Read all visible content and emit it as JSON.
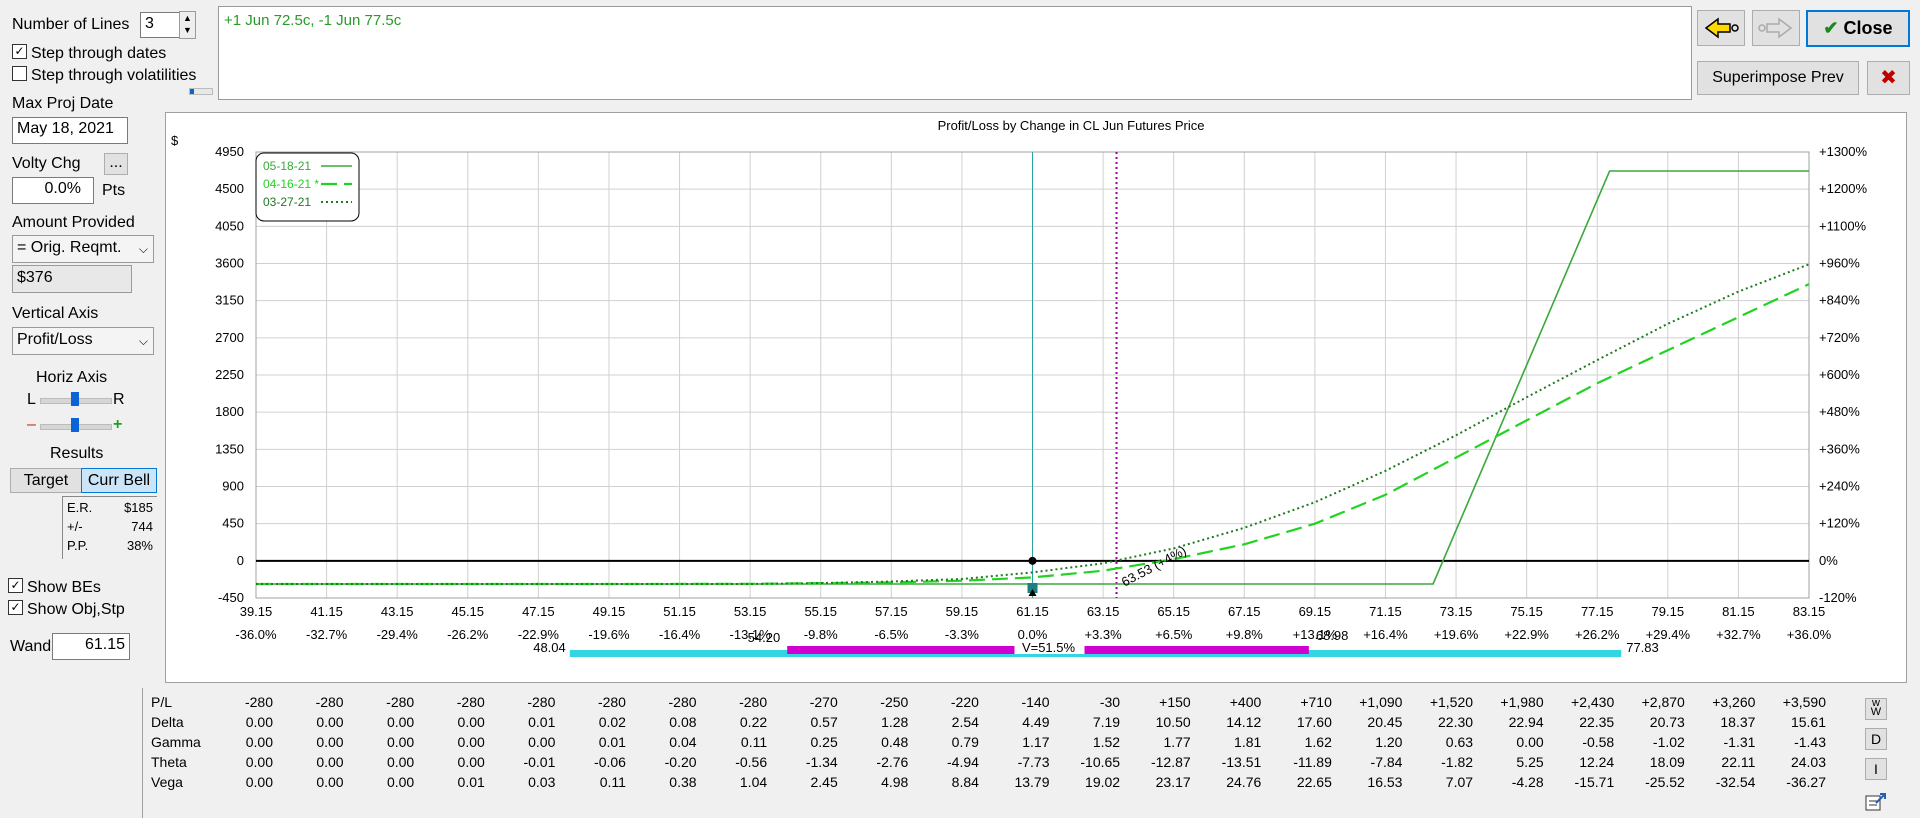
{
  "controls": {
    "number_of_lines_label": "Number of Lines",
    "number_of_lines_value": "3",
    "step_dates_label": "Step through dates",
    "step_vol_label": "Step through volatilities",
    "max_proj_date_label": "Max Proj Date",
    "max_proj_date_value": "May 18, 2021",
    "volty_chg_label": "Volty Chg",
    "volty_chg_button": "...",
    "volty_chg_value": "0.0%",
    "volty_chg_unit": "Pts",
    "amount_provided_label": "Amount Provided",
    "amount_provided_select": "= Orig. Reqmt.",
    "amount_value": "$376",
    "vertical_axis_label": "Vertical Axis",
    "vertical_axis_select": "Profit/Loss",
    "horiz_axis_label": "Horiz Axis",
    "slider_left": "L",
    "slider_right": "R",
    "slider_minus": "–",
    "slider_plus": "+",
    "results_label": "Results",
    "target_tab": "Target",
    "curr_bell_tab": "Curr Bell",
    "er_label": "E.R.",
    "er_value": "$185",
    "pm_label": "+/-",
    "pm_value": "744",
    "pp_label": "P.P.",
    "pp_value": "38%",
    "show_bes_label": "Show BEs",
    "show_obj_label": "Show Obj,Stp",
    "wand_label": "Wand",
    "wand_value": "61.15"
  },
  "position_text": "+1 Jun 72.5c, -1 Jun 77.5c",
  "buttons": {
    "close": "Close",
    "superimpose": "Superimpose Prev",
    "close_x": "✖",
    "w_btn": "w",
    "w_btn2": "W",
    "d_btn": "D",
    "i_btn": "I"
  },
  "colors": {
    "line_green": "#3aa83a",
    "dash_green": "#22d322",
    "dot_green": "#1f7a1f",
    "current_price": "#2ba3a3",
    "marker_purple": "#a000a0",
    "bell_cyan": "#33d6e0",
    "bell_magenta": "#d000d0"
  },
  "chart_data": {
    "type": "line",
    "title": "Profit/Loss by Change in CL Jun Futures Price",
    "ylabel": "$",
    "ylim": [
      -450,
      4950
    ],
    "xlim": [
      39.15,
      83.15
    ],
    "y_ticks": [
      "-450",
      "0",
      "450",
      "900",
      "1350",
      "1800",
      "2250",
      "2700",
      "3150",
      "3600",
      "4050",
      "4500",
      "4950"
    ],
    "y_right_ticks": [
      "-120%",
      "0%",
      "+120%",
      "+240%",
      "+360%",
      "+480%",
      "+600%",
      "+720%",
      "+840%",
      "+960%",
      "+1100%",
      "+1200%",
      "+1300%"
    ],
    "x_ticks": [
      "39.15",
      "41.15",
      "43.15",
      "45.15",
      "47.15",
      "49.15",
      "51.15",
      "53.15",
      "55.15",
      "57.15",
      "59.15",
      "61.15",
      "63.15",
      "65.15",
      "67.15",
      "69.15",
      "71.15",
      "73.15",
      "75.15",
      "77.15",
      "79.15",
      "81.15",
      "83.15"
    ],
    "x_pct_ticks": [
      "-36.0%",
      "-32.7%",
      "-29.4%",
      "-26.2%",
      "-22.9%",
      "-19.6%",
      "-16.4%",
      "-13.1%",
      "-9.8%",
      "-6.5%",
      "-3.3%",
      "0.0%",
      "+3.3%",
      "+6.5%",
      "+9.8%",
      "+13.1%",
      "+16.4%",
      "+19.6%",
      "+22.9%",
      "+26.2%",
      "+29.4%",
      "+32.7%",
      "+36.0%"
    ],
    "legend": [
      {
        "label": "05-18-21",
        "style": "solid"
      },
      {
        "label": "04-16-21 *",
        "style": "dashed"
      },
      {
        "label": "03-27-21",
        "style": "dotted"
      }
    ],
    "series": [
      {
        "name": "05-18-21",
        "style": "solid",
        "x": [
          39.15,
          72.5,
          77.5,
          83.15
        ],
        "values": [
          -280,
          -280,
          4720,
          4720
        ]
      },
      {
        "name": "04-16-21 *",
        "style": "dashed",
        "x": [
          39.15,
          49.15,
          53.15,
          57.15,
          59.15,
          61.15,
          63.15,
          65.15,
          67.15,
          69.15,
          71.15,
          73.15,
          75.15,
          77.15,
          79.15,
          81.15,
          83.15
        ],
        "values": [
          -280,
          -280,
          -278,
          -262,
          -240,
          -200,
          -120,
          20,
          200,
          450,
          800,
          1250,
          1700,
          2150,
          2550,
          2950,
          3350
        ]
      },
      {
        "name": "03-27-21",
        "style": "dotted",
        "x": [
          39.15,
          49.15,
          53.15,
          55.15,
          57.15,
          59.15,
          61.15,
          63.15,
          65.15,
          67.15,
          69.15,
          71.15,
          73.15,
          75.15,
          77.15,
          79.15,
          81.15,
          83.15
        ],
        "values": [
          -280,
          -280,
          -280,
          -270,
          -250,
          -220,
          -140,
          -30,
          150,
          400,
          710,
          1090,
          1520,
          1980,
          2430,
          2870,
          3260,
          3590
        ]
      }
    ],
    "current_price": 61.15,
    "breakeven": {
      "x": 63.53,
      "label": "63.53 (+4%)"
    },
    "bell": {
      "low_outer": "48.04",
      "low_inner": "54.20",
      "center": "V=51.5%",
      "high_inner": "68.98",
      "high_outer": "77.83",
      "low_outer_x": 48.04,
      "low_inner_x": 54.2,
      "high_inner_x": 68.98,
      "high_outer_x": 77.83
    }
  },
  "greeks": {
    "rows": [
      {
        "label": "P/L",
        "values": [
          "-280",
          "-280",
          "-280",
          "-280",
          "-280",
          "-280",
          "-280",
          "-280",
          "-270",
          "-250",
          "-220",
          "-140",
          "-30",
          "+150",
          "+400",
          "+710",
          "+1,090",
          "+1,520",
          "+1,980",
          "+2,430",
          "+2,870",
          "+3,260",
          "+3,590"
        ]
      },
      {
        "label": "Delta",
        "values": [
          "0.00",
          "0.00",
          "0.00",
          "0.00",
          "0.01",
          "0.02",
          "0.08",
          "0.22",
          "0.57",
          "1.28",
          "2.54",
          "4.49",
          "7.19",
          "10.50",
          "14.12",
          "17.60",
          "20.45",
          "22.30",
          "22.94",
          "22.35",
          "20.73",
          "18.37",
          "15.61"
        ]
      },
      {
        "label": "Gamma",
        "values": [
          "0.00",
          "0.00",
          "0.00",
          "0.00",
          "0.00",
          "0.01",
          "0.04",
          "0.11",
          "0.25",
          "0.48",
          "0.79",
          "1.17",
          "1.52",
          "1.77",
          "1.81",
          "1.62",
          "1.20",
          "0.63",
          "0.00",
          "-0.58",
          "-1.02",
          "-1.31",
          "-1.43"
        ]
      },
      {
        "label": "Theta",
        "values": [
          "0.00",
          "0.00",
          "0.00",
          "0.00",
          "-0.01",
          "-0.06",
          "-0.20",
          "-0.56",
          "-1.34",
          "-2.76",
          "-4.94",
          "-7.73",
          "-10.65",
          "-12.87",
          "-13.51",
          "-11.89",
          "-7.84",
          "-1.82",
          "5.25",
          "12.24",
          "18.09",
          "22.11",
          "24.03"
        ]
      },
      {
        "label": "Vega",
        "values": [
          "0.00",
          "0.00",
          "0.00",
          "0.01",
          "0.03",
          "0.11",
          "0.38",
          "1.04",
          "2.45",
          "4.98",
          "8.84",
          "13.79",
          "19.02",
          "23.17",
          "24.76",
          "22.65",
          "16.53",
          "7.07",
          "-4.28",
          "-15.71",
          "-25.52",
          "-32.54",
          "-36.27"
        ]
      }
    ]
  }
}
